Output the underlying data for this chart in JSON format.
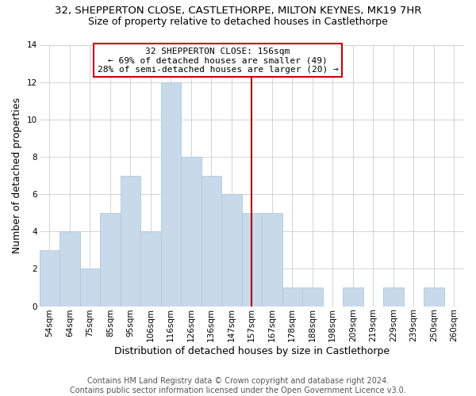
{
  "title": "32, SHEPPERTON CLOSE, CASTLETHORPE, MILTON KEYNES, MK19 7HR",
  "subtitle": "Size of property relative to detached houses in Castlethorpe",
  "xlabel": "Distribution of detached houses by size in Castlethorpe",
  "ylabel": "Number of detached properties",
  "bar_labels": [
    "54sqm",
    "64sqm",
    "75sqm",
    "85sqm",
    "95sqm",
    "106sqm",
    "116sqm",
    "126sqm",
    "136sqm",
    "147sqm",
    "157sqm",
    "167sqm",
    "178sqm",
    "188sqm",
    "198sqm",
    "209sqm",
    "219sqm",
    "229sqm",
    "239sqm",
    "250sqm",
    "260sqm"
  ],
  "bar_values": [
    3,
    4,
    2,
    5,
    7,
    4,
    12,
    8,
    7,
    6,
    5,
    5,
    1,
    1,
    0,
    1,
    0,
    1,
    0,
    1,
    0
  ],
  "bar_color": "#c8daea",
  "bar_edge_color": "#b0c8dc",
  "ref_line_label": "157sqm",
  "ref_line_color": "#aa0000",
  "annotation_title": "32 SHEPPERTON CLOSE: 156sqm",
  "annotation_line1": "← 69% of detached houses are smaller (49)",
  "annotation_line2": "28% of semi-detached houses are larger (20) →",
  "annotation_box_color": "#ffffff",
  "annotation_box_edge_color": "#cc0000",
  "ylim": [
    0,
    14
  ],
  "yticks": [
    0,
    2,
    4,
    6,
    8,
    10,
    12,
    14
  ],
  "footer_line1": "Contains HM Land Registry data © Crown copyright and database right 2024.",
  "footer_line2": "Contains public sector information licensed under the Open Government Licence v3.0.",
  "background_color": "#ffffff",
  "grid_color": "#cccccc",
  "title_fontsize": 9.5,
  "subtitle_fontsize": 9,
  "axis_label_fontsize": 9,
  "tick_fontsize": 7.5,
  "annotation_fontsize": 8,
  "footer_fontsize": 7
}
